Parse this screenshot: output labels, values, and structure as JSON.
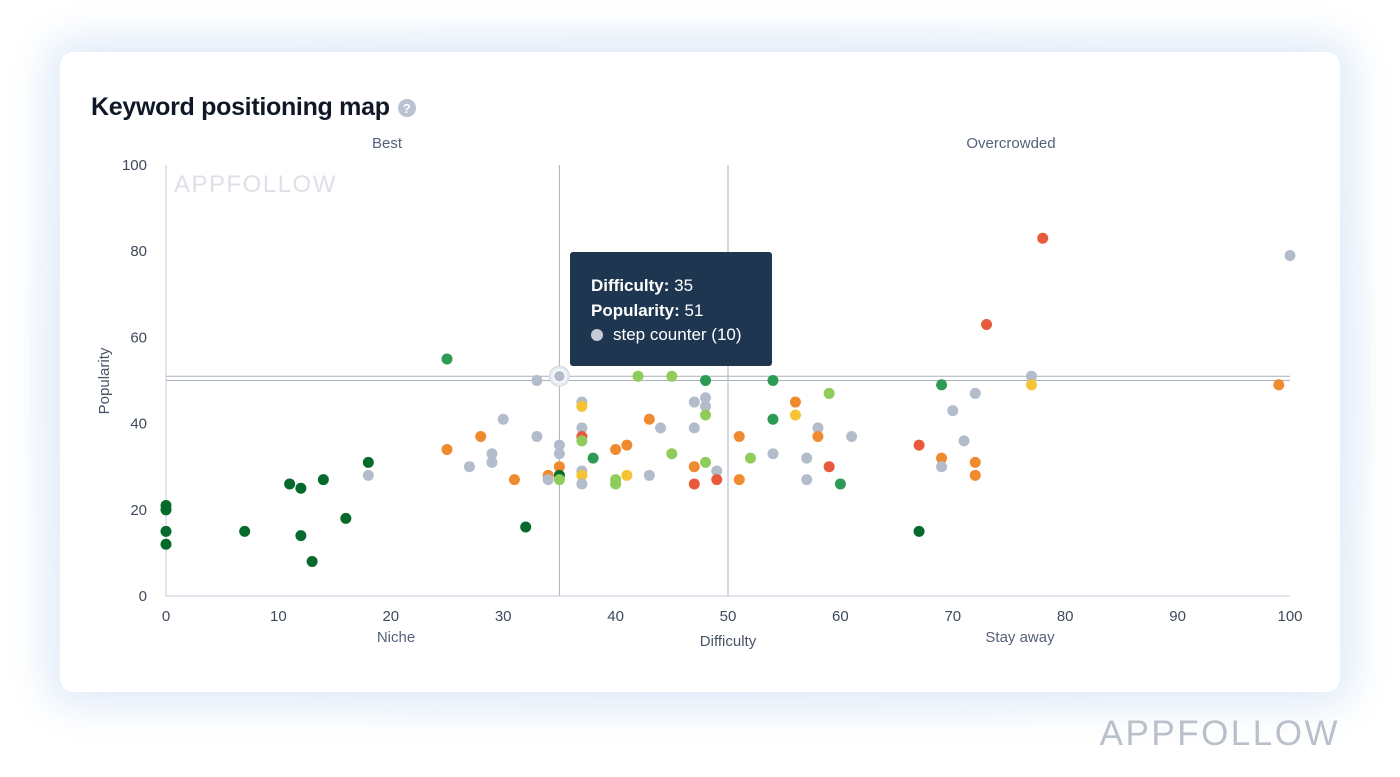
{
  "title": "Keyword positioning map",
  "help_icon": "question-circle-icon",
  "watermark_chart": "APPFOLLOW",
  "watermark_bottom": "APPFOLLOW",
  "tooltip": {
    "difficulty_label": "Difficulty:",
    "difficulty_value": "35",
    "popularity_label": "Popularity:",
    "popularity_value": "51",
    "keyword": "step counter (10)"
  },
  "colors": {
    "dark_green": "#056a2b",
    "green": "#2e9b55",
    "light_green": "#90cc5a",
    "yellow": "#f5c334",
    "orange": "#ef8a2e",
    "red": "#e85a3c",
    "gray": "#b3bccb"
  },
  "chart_data": {
    "type": "scatter",
    "xlabel": "Difficulty",
    "ylabel": "Popularity",
    "xlim": [
      0,
      100
    ],
    "ylim": [
      0,
      100
    ],
    "x_ticks": [
      0,
      10,
      20,
      30,
      40,
      50,
      60,
      70,
      80,
      90,
      100
    ],
    "y_ticks": [
      0,
      20,
      40,
      60,
      80,
      100
    ],
    "quadrant_labels": {
      "top_left": "Best",
      "top_right": "Overcrowded",
      "bottom_left": "Niche",
      "bottom_right": "Stay away"
    },
    "reference_lines": {
      "x": [
        35,
        50
      ],
      "y": [
        50,
        51
      ]
    },
    "highlighted_point": {
      "x": 35,
      "y": 51
    },
    "points": [
      {
        "x": 0,
        "y": 21,
        "c": "dark_green"
      },
      {
        "x": 0,
        "y": 20,
        "c": "dark_green"
      },
      {
        "x": 0,
        "y": 15,
        "c": "dark_green"
      },
      {
        "x": 0,
        "y": 12,
        "c": "dark_green"
      },
      {
        "x": 7,
        "y": 15,
        "c": "dark_green"
      },
      {
        "x": 11,
        "y": 26,
        "c": "dark_green"
      },
      {
        "x": 12,
        "y": 25,
        "c": "dark_green"
      },
      {
        "x": 12,
        "y": 14,
        "c": "dark_green"
      },
      {
        "x": 13,
        "y": 8,
        "c": "dark_green"
      },
      {
        "x": 14,
        "y": 27,
        "c": "dark_green"
      },
      {
        "x": 16,
        "y": 18,
        "c": "dark_green"
      },
      {
        "x": 18,
        "y": 31,
        "c": "dark_green"
      },
      {
        "x": 18,
        "y": 28,
        "c": "gray"
      },
      {
        "x": 25,
        "y": 55,
        "c": "green"
      },
      {
        "x": 25,
        "y": 34,
        "c": "orange"
      },
      {
        "x": 27,
        "y": 30,
        "c": "gray"
      },
      {
        "x": 28,
        "y": 37,
        "c": "orange"
      },
      {
        "x": 29,
        "y": 33,
        "c": "gray"
      },
      {
        "x": 29,
        "y": 31,
        "c": "gray"
      },
      {
        "x": 30,
        "y": 41,
        "c": "gray"
      },
      {
        "x": 31,
        "y": 27,
        "c": "orange"
      },
      {
        "x": 32,
        "y": 16,
        "c": "dark_green"
      },
      {
        "x": 33,
        "y": 50,
        "c": "gray"
      },
      {
        "x": 33,
        "y": 37,
        "c": "gray"
      },
      {
        "x": 34,
        "y": 28,
        "c": "orange"
      },
      {
        "x": 34,
        "y": 27,
        "c": "gray"
      },
      {
        "x": 35,
        "y": 35,
        "c": "gray"
      },
      {
        "x": 35,
        "y": 33,
        "c": "gray"
      },
      {
        "x": 35,
        "y": 30,
        "c": "orange"
      },
      {
        "x": 35,
        "y": 28,
        "c": "dark_green"
      },
      {
        "x": 35,
        "y": 27,
        "c": "light_green"
      },
      {
        "x": 37,
        "y": 45,
        "c": "gray"
      },
      {
        "x": 37,
        "y": 44,
        "c": "yellow"
      },
      {
        "x": 37,
        "y": 39,
        "c": "gray"
      },
      {
        "x": 37,
        "y": 37,
        "c": "red"
      },
      {
        "x": 37,
        "y": 36,
        "c": "light_green"
      },
      {
        "x": 37,
        "y": 29,
        "c": "gray"
      },
      {
        "x": 37,
        "y": 28,
        "c": "yellow"
      },
      {
        "x": 37,
        "y": 26,
        "c": "gray"
      },
      {
        "x": 38,
        "y": 32,
        "c": "green"
      },
      {
        "x": 40,
        "y": 34,
        "c": "orange"
      },
      {
        "x": 40,
        "y": 27,
        "c": "light_green"
      },
      {
        "x": 40,
        "y": 26,
        "c": "light_green"
      },
      {
        "x": 41,
        "y": 35,
        "c": "orange"
      },
      {
        "x": 41,
        "y": 28,
        "c": "yellow"
      },
      {
        "x": 42,
        "y": 51,
        "c": "light_green"
      },
      {
        "x": 43,
        "y": 41,
        "c": "orange"
      },
      {
        "x": 43,
        "y": 28,
        "c": "gray"
      },
      {
        "x": 44,
        "y": 39,
        "c": "gray"
      },
      {
        "x": 45,
        "y": 51,
        "c": "light_green"
      },
      {
        "x": 45,
        "y": 33,
        "c": "light_green"
      },
      {
        "x": 47,
        "y": 45,
        "c": "gray"
      },
      {
        "x": 47,
        "y": 39,
        "c": "gray"
      },
      {
        "x": 47,
        "y": 30,
        "c": "orange"
      },
      {
        "x": 47,
        "y": 26,
        "c": "red"
      },
      {
        "x": 48,
        "y": 50,
        "c": "green"
      },
      {
        "x": 48,
        "y": 46,
        "c": "gray"
      },
      {
        "x": 48,
        "y": 44,
        "c": "gray"
      },
      {
        "x": 48,
        "y": 42,
        "c": "light_green"
      },
      {
        "x": 48,
        "y": 31,
        "c": "light_green"
      },
      {
        "x": 49,
        "y": 29,
        "c": "gray"
      },
      {
        "x": 49,
        "y": 27,
        "c": "red"
      },
      {
        "x": 51,
        "y": 37,
        "c": "orange"
      },
      {
        "x": 51,
        "y": 27,
        "c": "orange"
      },
      {
        "x": 52,
        "y": 32,
        "c": "light_green"
      },
      {
        "x": 54,
        "y": 50,
        "c": "green"
      },
      {
        "x": 54,
        "y": 41,
        "c": "green"
      },
      {
        "x": 54,
        "y": 33,
        "c": "gray"
      },
      {
        "x": 56,
        "y": 45,
        "c": "orange"
      },
      {
        "x": 56,
        "y": 42,
        "c": "yellow"
      },
      {
        "x": 57,
        "y": 32,
        "c": "gray"
      },
      {
        "x": 57,
        "y": 27,
        "c": "gray"
      },
      {
        "x": 58,
        "y": 39,
        "c": "gray"
      },
      {
        "x": 58,
        "y": 37,
        "c": "orange"
      },
      {
        "x": 59,
        "y": 47,
        "c": "light_green"
      },
      {
        "x": 59,
        "y": 30,
        "c": "red"
      },
      {
        "x": 60,
        "y": 26,
        "c": "green"
      },
      {
        "x": 61,
        "y": 37,
        "c": "gray"
      },
      {
        "x": 67,
        "y": 35,
        "c": "red"
      },
      {
        "x": 67,
        "y": 15,
        "c": "dark_green"
      },
      {
        "x": 69,
        "y": 49,
        "c": "green"
      },
      {
        "x": 69,
        "y": 32,
        "c": "orange"
      },
      {
        "x": 69,
        "y": 30,
        "c": "gray"
      },
      {
        "x": 70,
        "y": 43,
        "c": "gray"
      },
      {
        "x": 71,
        "y": 36,
        "c": "gray"
      },
      {
        "x": 72,
        "y": 47,
        "c": "gray"
      },
      {
        "x": 72,
        "y": 31,
        "c": "orange"
      },
      {
        "x": 72,
        "y": 28,
        "c": "orange"
      },
      {
        "x": 73,
        "y": 63,
        "c": "red"
      },
      {
        "x": 77,
        "y": 51,
        "c": "gray"
      },
      {
        "x": 77,
        "y": 49,
        "c": "yellow"
      },
      {
        "x": 78,
        "y": 83,
        "c": "red"
      },
      {
        "x": 99,
        "y": 49,
        "c": "orange"
      },
      {
        "x": 100,
        "y": 79,
        "c": "gray"
      }
    ]
  }
}
